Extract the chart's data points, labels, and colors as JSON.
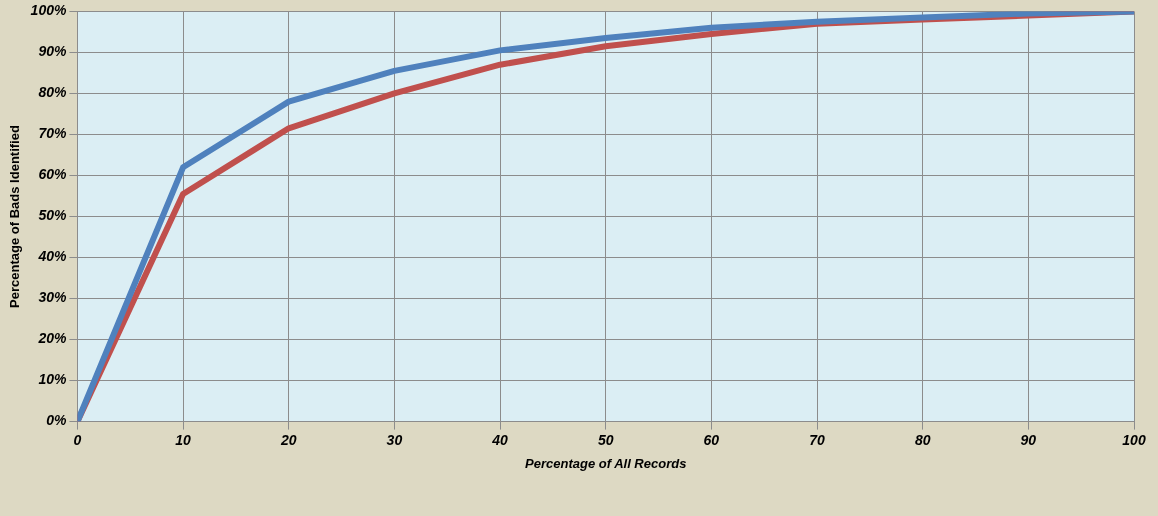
{
  "chart_data": {
    "type": "line",
    "xlabel": "Percentage of All Records",
    "ylabel": "Percentage of Bads Identified",
    "x": [
      0,
      10,
      20,
      30,
      40,
      50,
      60,
      70,
      80,
      90,
      100
    ],
    "series": [
      {
        "color": "#4f81bd",
        "values": [
          0,
          62,
          78,
          85.5,
          90.5,
          93.5,
          96,
          97.5,
          98.5,
          99.5,
          100
        ]
      },
      {
        "color": "#c0504d",
        "values": [
          0,
          55.5,
          71.5,
          80,
          87,
          91.5,
          94.5,
          97,
          98,
          99,
          100
        ]
      }
    ],
    "xlim": [
      0,
      100
    ],
    "xticks": [
      0,
      10,
      20,
      30,
      40,
      50,
      60,
      70,
      80,
      90,
      100
    ],
    "ylim": [
      0,
      100
    ],
    "yticks": [
      {
        "value": 0,
        "label": "0%"
      },
      {
        "value": 10,
        "label": "10%"
      },
      {
        "value": 20,
        "label": "20%"
      },
      {
        "value": 30,
        "label": "30%"
      },
      {
        "value": 40,
        "label": "40%"
      },
      {
        "value": 50,
        "label": "50%"
      },
      {
        "value": 60,
        "label": "60%"
      },
      {
        "value": 70,
        "label": "70%"
      },
      {
        "value": 80,
        "label": "80%"
      },
      {
        "value": 90,
        "label": "90%"
      },
      {
        "value": 100,
        "label": "100%"
      }
    ],
    "grid": true,
    "marker": "none",
    "line_style": "solid"
  }
}
